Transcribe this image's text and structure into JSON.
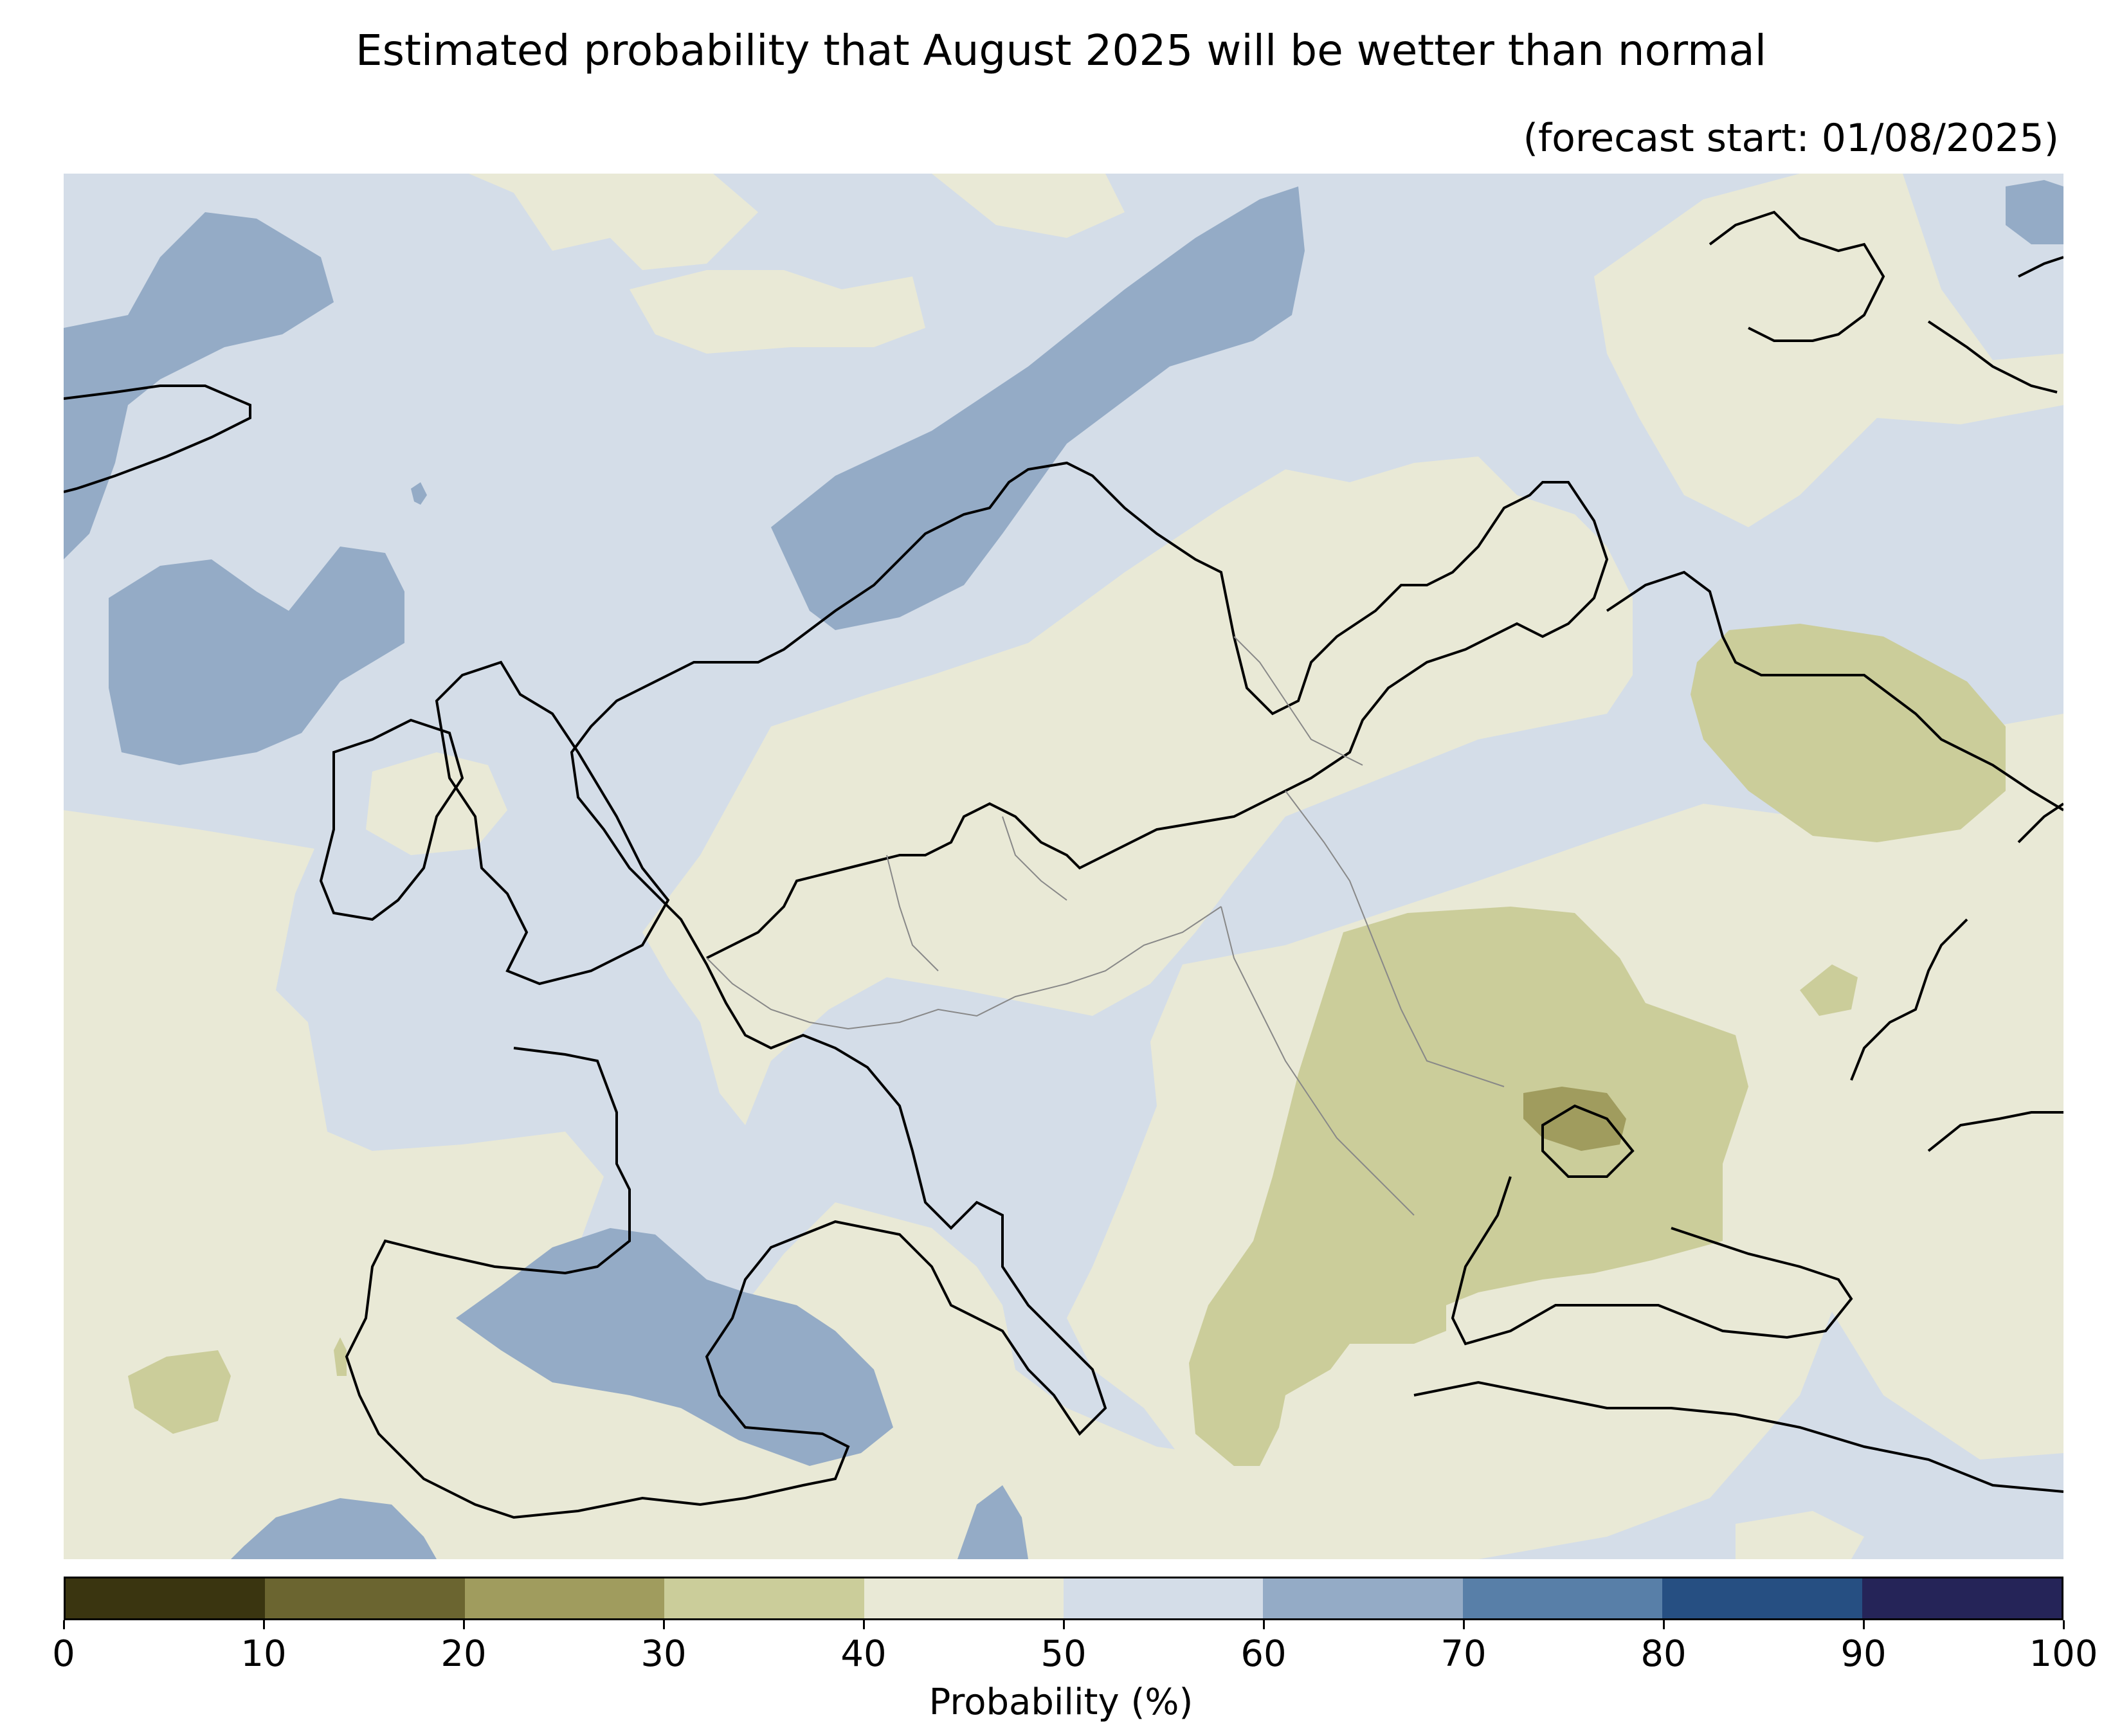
{
  "title": "Estimated probability that August 2025 will be wetter than normal",
  "subtitle": "(forecast start: 01/08/2025)",
  "colorbar": {
    "label": "Probability (%)",
    "ticks": [
      "0",
      "10",
      "20",
      "30",
      "40",
      "50",
      "60",
      "70",
      "80",
      "90",
      "100"
    ],
    "colors": [
      "#3a3510",
      "#6b6530",
      "#a09c5e",
      "#cbcd9a",
      "#e9e9d6",
      "#d4dde8",
      "#94abc6",
      "#587fa8",
      "#264f82",
      "#252458"
    ]
  },
  "map": {
    "region": "Europe",
    "land_color": "#e9e9d6",
    "sea_color": "#d4dde8",
    "coastline_color": "#000000",
    "border_color": "#888888"
  }
}
